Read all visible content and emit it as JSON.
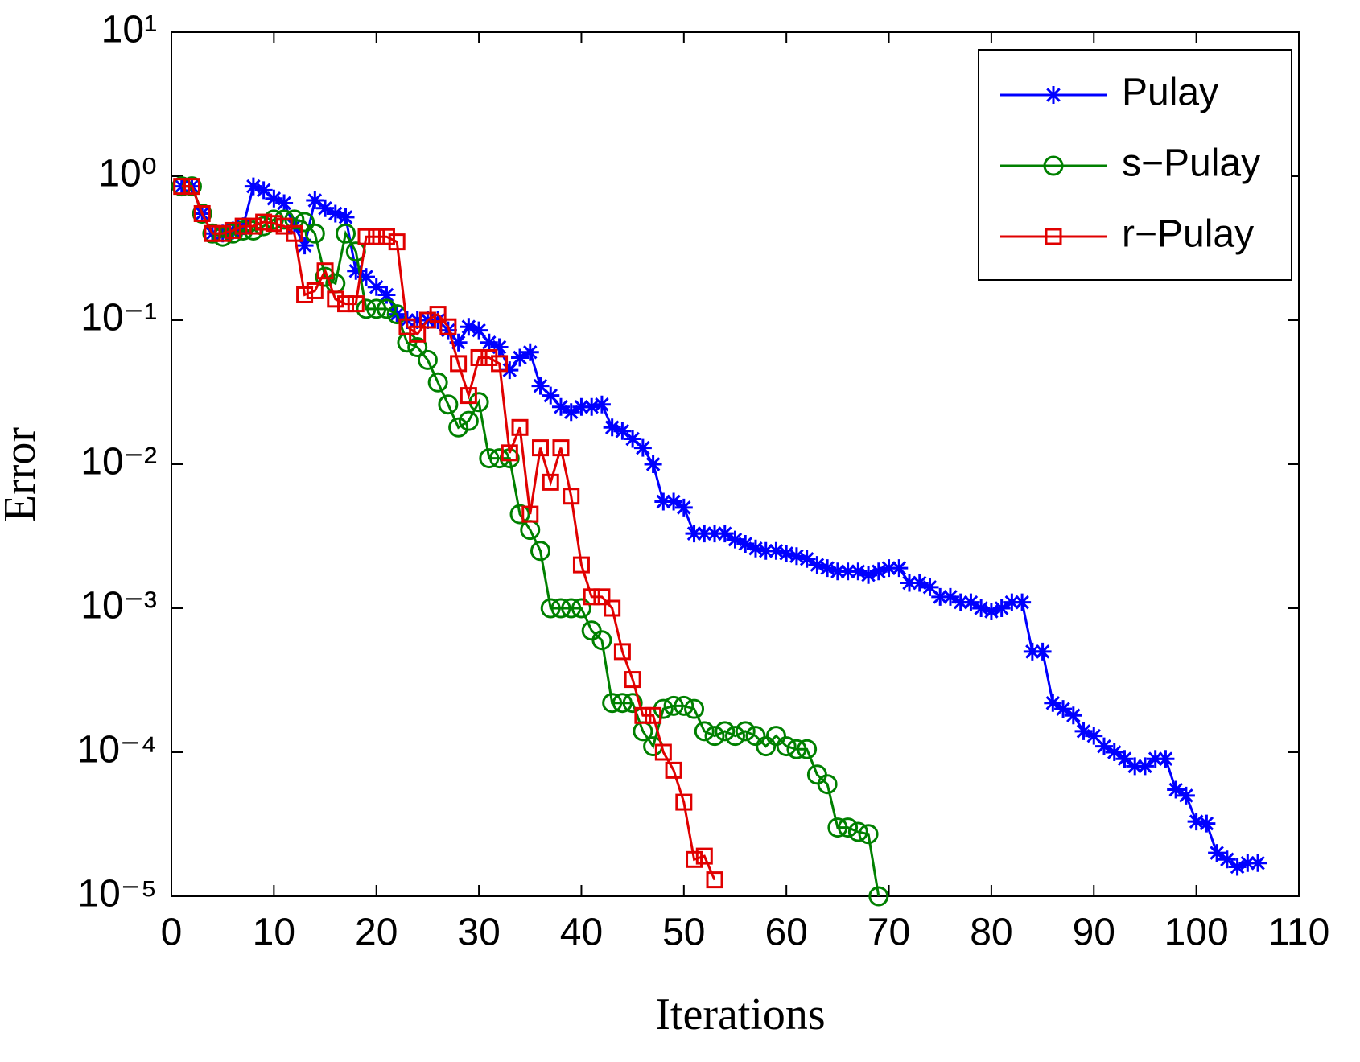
{
  "chart_data": {
    "type": "line",
    "xlabel": "Iterations",
    "ylabel": "Error",
    "xlim": [
      0,
      110
    ],
    "xticks": [
      0,
      10,
      20,
      30,
      40,
      50,
      60,
      70,
      80,
      90,
      100,
      110
    ],
    "ylim": [
      1e-05,
      10
    ],
    "log_y": true,
    "yticks": [
      {
        "value": 1e-05,
        "label": "10⁻⁵"
      },
      {
        "value": 0.0001,
        "label": "10⁻⁴"
      },
      {
        "value": 0.001,
        "label": "10⁻³"
      },
      {
        "value": 0.01,
        "label": "10⁻²"
      },
      {
        "value": 0.1,
        "label": "10⁻¹"
      },
      {
        "value": 1,
        "label": "10⁰"
      },
      {
        "value": 10,
        "label": "10¹"
      }
    ],
    "grid": false,
    "legend": "northeast",
    "series": [
      {
        "name": "Pulay",
        "color": "#0000ff",
        "marker": "*",
        "x": [
          1,
          2,
          3,
          4,
          5,
          6,
          7,
          8,
          9,
          10,
          11,
          12,
          13,
          14,
          15,
          16,
          17,
          18,
          19,
          20,
          21,
          22,
          23,
          24,
          25,
          26,
          27,
          28,
          29,
          30,
          31,
          32,
          33,
          34,
          35,
          36,
          37,
          38,
          39,
          40,
          41,
          42,
          43,
          44,
          45,
          46,
          47,
          48,
          49,
          50,
          51,
          52,
          53,
          54,
          55,
          56,
          57,
          58,
          59,
          60,
          61,
          62,
          63,
          64,
          65,
          66,
          67,
          68,
          69,
          70,
          71,
          72,
          73,
          74,
          75,
          76,
          77,
          78,
          79,
          80,
          81,
          82,
          83,
          84,
          85,
          86,
          87,
          88,
          89,
          90,
          91,
          92,
          93,
          94,
          95,
          96,
          97,
          98,
          99,
          100,
          101,
          102,
          103,
          104,
          105,
          106
        ],
        "values": [
          0.85,
          0.85,
          0.55,
          0.4,
          0.4,
          0.42,
          0.45,
          0.85,
          0.8,
          0.7,
          0.65,
          0.45,
          0.33,
          0.68,
          0.6,
          0.55,
          0.52,
          0.22,
          0.2,
          0.17,
          0.15,
          0.11,
          0.1,
          0.1,
          0.1,
          0.1,
          0.085,
          0.07,
          0.09,
          0.085,
          0.07,
          0.065,
          0.045,
          0.055,
          0.06,
          0.035,
          0.03,
          0.025,
          0.023,
          0.025,
          0.025,
          0.026,
          0.018,
          0.017,
          0.015,
          0.013,
          0.01,
          0.0055,
          0.0055,
          0.005,
          0.0033,
          0.0033,
          0.0033,
          0.0033,
          0.003,
          0.0028,
          0.0026,
          0.0025,
          0.0025,
          0.0024,
          0.0023,
          0.0022,
          0.002,
          0.0019,
          0.0018,
          0.0018,
          0.0018,
          0.0017,
          0.0018,
          0.0019,
          0.0019,
          0.0015,
          0.0015,
          0.0014,
          0.0012,
          0.0012,
          0.0011,
          0.0011,
          0.001,
          0.00095,
          0.001,
          0.0011,
          0.0011,
          0.0005,
          0.0005,
          0.00022,
          0.0002,
          0.00018,
          0.00014,
          0.00013,
          0.00011,
          0.0001,
          9e-05,
          8e-05,
          8e-05,
          9e-05,
          9e-05,
          5.5e-05,
          5e-05,
          3.3e-05,
          3.2e-05,
          2e-05,
          1.8e-05,
          1.6e-05,
          1.7e-05,
          1.7e-05
        ]
      },
      {
        "name": "s−Pulay",
        "color": "#008000",
        "marker": "o",
        "x": [
          1,
          2,
          3,
          4,
          5,
          6,
          7,
          8,
          9,
          10,
          11,
          12,
          13,
          14,
          15,
          16,
          17,
          18,
          19,
          20,
          21,
          22,
          23,
          24,
          25,
          26,
          27,
          28,
          29,
          30,
          31,
          32,
          33,
          34,
          35,
          36,
          37,
          38,
          39,
          40,
          41,
          42,
          43,
          44,
          45,
          46,
          47,
          48,
          49,
          50,
          51,
          52,
          53,
          54,
          55,
          56,
          57,
          58,
          59,
          60,
          61,
          62,
          63,
          64,
          65,
          66,
          67,
          68,
          69
        ],
        "values": [
          0.85,
          0.85,
          0.55,
          0.4,
          0.38,
          0.4,
          0.42,
          0.42,
          0.45,
          0.5,
          0.5,
          0.5,
          0.48,
          0.4,
          0.2,
          0.18,
          0.4,
          0.3,
          0.12,
          0.12,
          0.12,
          0.11,
          0.07,
          0.065,
          0.053,
          0.037,
          0.026,
          0.018,
          0.02,
          0.027,
          0.011,
          0.011,
          0.011,
          0.0045,
          0.0035,
          0.0025,
          0.001,
          0.001,
          0.001,
          0.001,
          0.0007,
          0.0006,
          0.00022,
          0.00022,
          0.00022,
          0.00014,
          0.00011,
          0.0002,
          0.00021,
          0.00021,
          0.0002,
          0.00014,
          0.00013,
          0.00014,
          0.00013,
          0.00014,
          0.00013,
          0.00011,
          0.00013,
          0.00011,
          0.000105,
          0.000105,
          7e-05,
          6e-05,
          3e-05,
          3e-05,
          2.8e-05,
          2.7e-05,
          1e-05
        ]
      },
      {
        "name": "r−Pulay",
        "color": "#e00000",
        "marker": "s",
        "x": [
          1,
          2,
          3,
          4,
          5,
          6,
          7,
          8,
          9,
          10,
          11,
          12,
          13,
          14,
          15,
          16,
          17,
          18,
          19,
          20,
          21,
          22,
          23,
          24,
          25,
          26,
          27,
          28,
          29,
          30,
          31,
          32,
          33,
          34,
          35,
          36,
          37,
          38,
          39,
          40,
          41,
          42,
          43,
          44,
          45,
          46,
          47,
          48,
          49,
          50,
          51,
          52,
          53
        ],
        "values": [
          0.85,
          0.85,
          0.55,
          0.4,
          0.4,
          0.42,
          0.45,
          0.45,
          0.48,
          0.47,
          0.45,
          0.4,
          0.15,
          0.16,
          0.22,
          0.14,
          0.13,
          0.13,
          0.38,
          0.38,
          0.38,
          0.35,
          0.09,
          0.08,
          0.1,
          0.11,
          0.09,
          0.05,
          0.03,
          0.055,
          0.055,
          0.05,
          0.012,
          0.018,
          0.0045,
          0.013,
          0.0075,
          0.013,
          0.006,
          0.002,
          0.0012,
          0.0012,
          0.001,
          0.0005,
          0.00032,
          0.00018,
          0.00018,
          0.0001,
          7.5e-05,
          4.5e-05,
          1.8e-05,
          1.9e-05,
          1.3e-05
        ]
      }
    ]
  }
}
